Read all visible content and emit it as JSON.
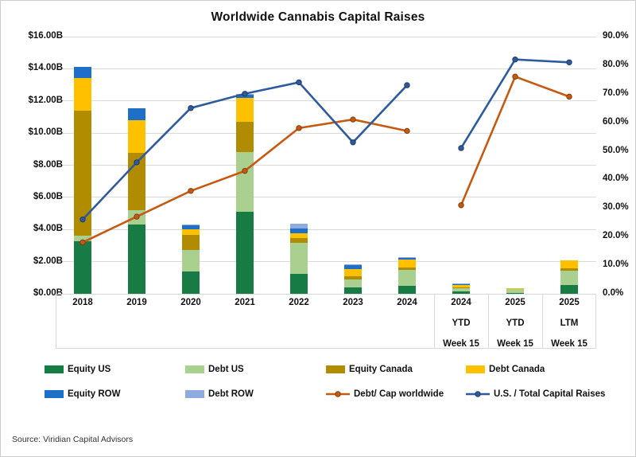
{
  "title": "Worldwide Cannabis Capital Raises",
  "source": {
    "text": "Source: Viridian Capital Advisors"
  },
  "chart_data": {
    "type": "combo",
    "bar_type": "stacked-bar",
    "title": "Worldwide Cannabis Capital Raises",
    "bar_unit": "USD billions",
    "line_unit": "percent",
    "grid": "horizontal",
    "ylim_left": [
      0,
      16
    ],
    "ylim_right_pct": [
      0,
      90
    ],
    "left_ticks": [
      "$16.00B",
      "$14.00B",
      "$12.00B",
      "$10.00B",
      "$8.00B",
      "$6.00B",
      "$4.00B",
      "$2.00B",
      "$0.00B"
    ],
    "right_ticks": [
      "90.0%",
      "80.0%",
      "70.0%",
      "60.0%",
      "50.0%",
      "40.0%",
      "30.0%",
      "20.0%",
      "10.0%",
      "0.0%"
    ],
    "categories": [
      "2018",
      "2019",
      "2020",
      "2021",
      "2022",
      "2023",
      "2024",
      "2024 YTD Week 15",
      "2025 YTD Week 15",
      "2025 LTM Week 15"
    ],
    "category_label_lines": [
      [
        "2018"
      ],
      [
        "2019"
      ],
      [
        "2020"
      ],
      [
        "2021"
      ],
      [
        "2022"
      ],
      [
        "2023"
      ],
      [
        "2024"
      ],
      [
        "2024",
        "YTD",
        "Week 15"
      ],
      [
        "2025",
        "YTD",
        "Week 15"
      ],
      [
        "2025",
        "LTM",
        "Week 15"
      ]
    ],
    "series": [
      {
        "name": "Equity US",
        "key": "equity_us",
        "values": [
          3.25,
          4.3,
          1.4,
          5.1,
          1.25,
          0.4,
          0.5,
          0.15,
          0.05,
          0.55
        ]
      },
      {
        "name": "Debt US",
        "key": "debt_us",
        "values": [
          0.35,
          0.9,
          1.3,
          3.7,
          1.9,
          0.5,
          1.0,
          0.2,
          0.3,
          0.9
        ]
      },
      {
        "name": "Equity Canada",
        "key": "equity_canada",
        "values": [
          7.8,
          3.55,
          0.95,
          1.9,
          0.3,
          0.2,
          0.15,
          0.05,
          0.0,
          0.15
        ]
      },
      {
        "name": "Debt Canada",
        "key": "debt_canada",
        "values": [
          2.0,
          2.05,
          0.35,
          1.5,
          0.3,
          0.45,
          0.5,
          0.15,
          0.02,
          0.5
        ]
      },
      {
        "name": "Equity ROW",
        "key": "equity_row",
        "values": [
          0.7,
          0.75,
          0.25,
          0.2,
          0.3,
          0.25,
          0.1,
          0.05,
          0.0,
          0.0
        ]
      },
      {
        "name": "Debt ROW",
        "key": "debt_row",
        "values": [
          0.0,
          0.0,
          0.05,
          0.05,
          0.3,
          0.05,
          0.05,
          0.02,
          0.0,
          0.0
        ]
      }
    ],
    "line_series": [
      {
        "name": "Debt/ Cap worldwide",
        "key": "debt_cap",
        "axis": "right",
        "values_pct": [
          18,
          27,
          36,
          43,
          58,
          61,
          57,
          31,
          76,
          69
        ],
        "segments": [
          [
            0,
            6
          ],
          [
            7,
            9
          ]
        ]
      },
      {
        "name": "U.S. / Total Capital Raises",
        "key": "us_total",
        "axis": "right",
        "values_pct": [
          26,
          46,
          65,
          70,
          74,
          53,
          73,
          51,
          82,
          81
        ],
        "segments": [
          [
            0,
            6
          ],
          [
            7,
            9
          ]
        ]
      }
    ],
    "colors": {
      "equity_us": "#177C43",
      "debt_us": "#A9D08E",
      "equity_canada": "#B18B00",
      "debt_canada": "#FFC000",
      "equity_row": "#1E6FC8",
      "debt_row": "#8FAADC",
      "debt_cap_line": "#C55A11",
      "us_total_line": "#2E5B9E",
      "grid": "#D9D9D9",
      "axis": "#BFBFBF",
      "text": "#1A1A1A"
    },
    "legend": {
      "rows": [
        [
          {
            "label": "Equity US",
            "swatch": "bar",
            "color_key": "equity_us"
          },
          {
            "label": "Debt US",
            "swatch": "bar",
            "color_key": "debt_us"
          },
          {
            "label": "Equity Canada",
            "swatch": "bar",
            "color_key": "equity_canada"
          },
          {
            "label": "Debt Canada",
            "swatch": "bar",
            "color_key": "debt_canada"
          }
        ],
        [
          {
            "label": "Equity ROW",
            "swatch": "bar",
            "color_key": "equity_row"
          },
          {
            "label": "Debt ROW",
            "swatch": "bar",
            "color_key": "debt_row"
          },
          {
            "label": "Debt/ Cap worldwide",
            "swatch": "line",
            "color_key": "debt_cap_line"
          },
          {
            "label": "U.S. / Total Capital Raises",
            "swatch": "line",
            "color_key": "us_total_line"
          }
        ]
      ]
    }
  }
}
